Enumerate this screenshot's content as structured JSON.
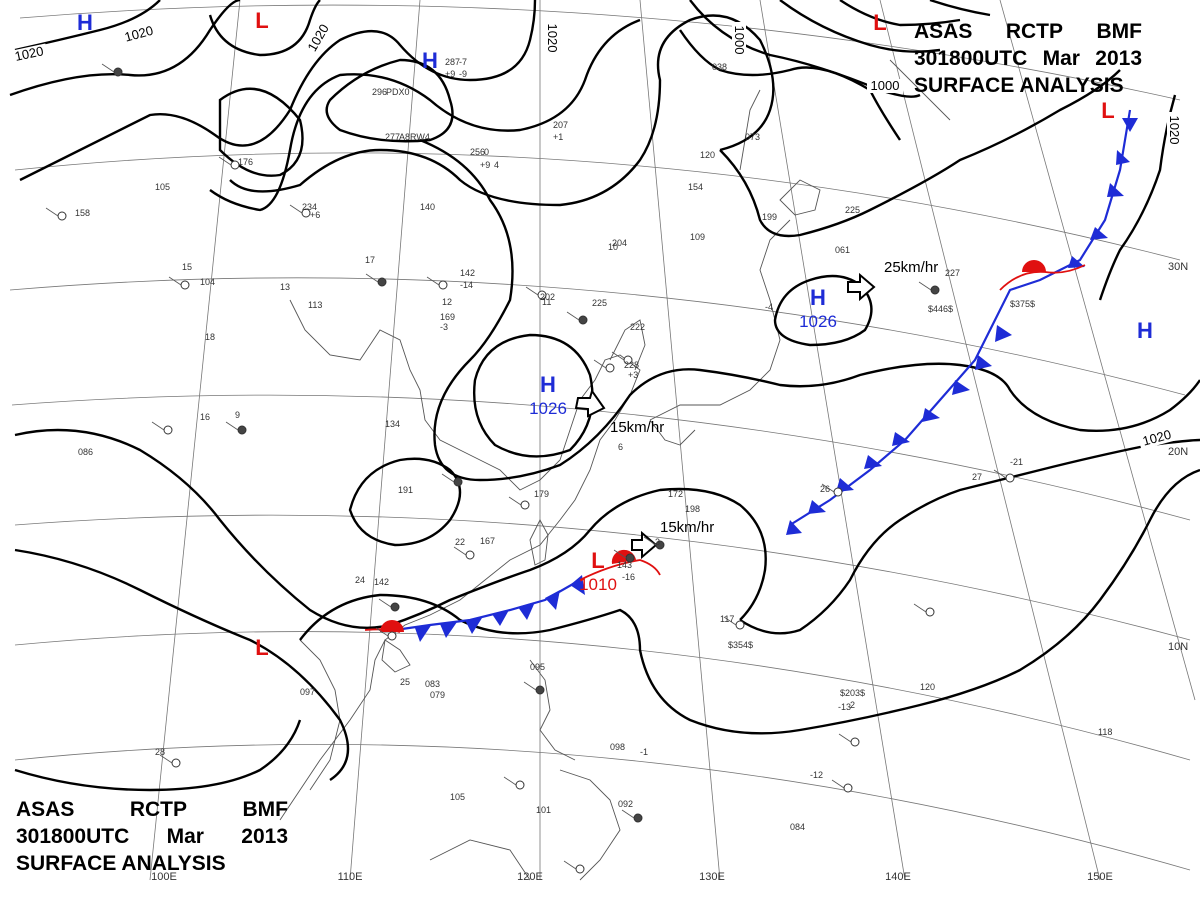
{
  "chart_title": {
    "office": "ASAS",
    "station": "RCTP",
    "code": "BMF",
    "time": "301800UTC",
    "month": "Mar",
    "year": "2013",
    "product": "SURFACE ANALYSIS"
  },
  "colors": {
    "high": "#1e2cd6",
    "low": "#e01010",
    "cold_front": "#1e2cd6",
    "warm_front": "#e01010",
    "isobar": "#000000",
    "grid": "#777777",
    "coast": "#555555"
  },
  "longitude_labels": [
    "100E",
    "110E",
    "120E",
    "130E",
    "140E",
    "150E"
  ],
  "latitude_labels": [
    "30N",
    "20N",
    "10N"
  ],
  "isobar_labels": [
    "1020",
    "1020",
    "1020",
    "1020",
    "1000",
    "1000",
    "1020",
    "1020"
  ],
  "pressure_centers": [
    {
      "type": "H",
      "value": ""
    },
    {
      "type": "L",
      "value": ""
    },
    {
      "type": "H",
      "value": ""
    },
    {
      "type": "L",
      "value": ""
    },
    {
      "type": "L",
      "value": ""
    },
    {
      "type": "H",
      "value": "1026"
    },
    {
      "type": "H",
      "value": "1026"
    },
    {
      "type": "H",
      "value": ""
    },
    {
      "type": "L",
      "value": "1010"
    },
    {
      "type": "L",
      "value": ""
    }
  ],
  "movements": [
    {
      "label": "25km/hr"
    },
    {
      "label": "15km/hr"
    },
    {
      "label": "15km/hr"
    }
  ],
  "station_texts": [
    "287",
    "+9",
    "296",
    "277",
    "256",
    "+9",
    "207",
    "+1",
    "120",
    "154",
    "038",
    "176",
    "234",
    "+6",
    "140",
    "142",
    "-14",
    "202",
    "225",
    "204",
    "222",
    "228",
    "+3",
    "134",
    "191",
    "179",
    "167",
    "142",
    "169",
    "113",
    "104",
    "105",
    "158",
    "086",
    "061",
    "227",
    "225",
    "$446$",
    "$375$",
    "$354$",
    "$203$",
    "120",
    "118",
    "098",
    "-12",
    "105",
    "101",
    "095",
    "092",
    "084",
    "083",
    "079",
    "097",
    "-21",
    "073",
    "199",
    "109",
    "172",
    "198",
    "143",
    "-16",
    "117",
    "-13",
    "25",
    "28",
    "27",
    "26",
    "24",
    "22",
    "18",
    "17",
    "16",
    "15",
    "13",
    "12",
    "11",
    "10",
    "9",
    "6",
    "3",
    "2",
    "-1",
    "-3",
    "-4",
    "-7",
    "-9",
    "PDX0",
    "A8RW4",
    "0",
    "4"
  ]
}
